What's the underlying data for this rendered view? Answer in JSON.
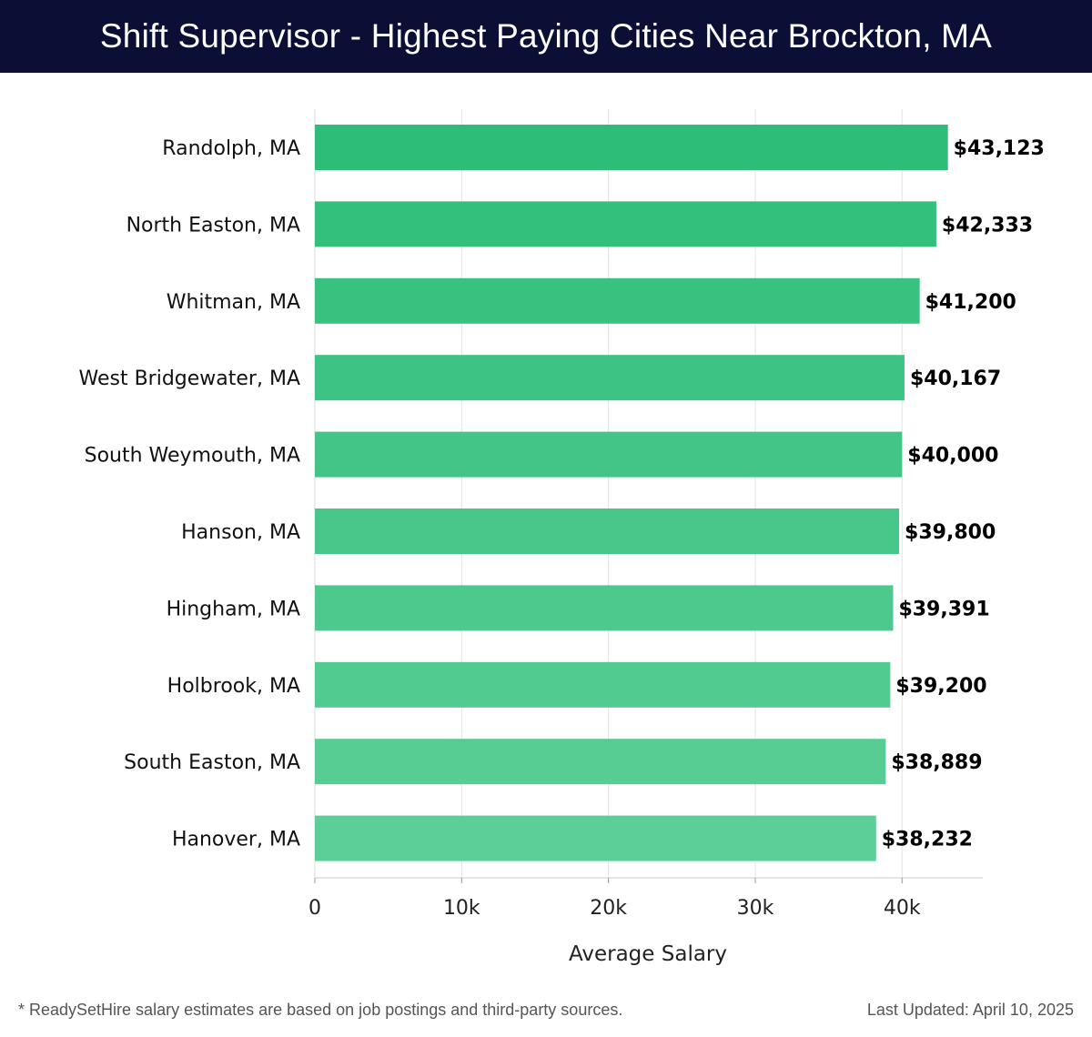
{
  "header": {
    "title": "Shift Supervisor - Highest Paying Cities Near Brockton, MA"
  },
  "chart_data": {
    "type": "bar",
    "orientation": "horizontal",
    "categories": [
      "Randolph, MA",
      "North Easton, MA",
      "Whitman, MA",
      "West Bridgewater, MA",
      "South Weymouth, MA",
      "Hanson, MA",
      "Hingham, MA",
      "Holbrook, MA",
      "South Easton, MA",
      "Hanover, MA"
    ],
    "values": [
      43123,
      42333,
      41200,
      40167,
      40000,
      39800,
      39391,
      39200,
      38889,
      38232
    ],
    "data_labels": [
      "$43,123",
      "$42,333",
      "$41,200",
      "$40,167",
      "$40,000",
      "$39,800",
      "$39,391",
      "$39,200",
      "$38,889",
      "$38,232"
    ],
    "xlabel": "Average Salary",
    "ylabel": "",
    "xlim": [
      0,
      45500
    ],
    "ticks": [
      0,
      10000,
      20000,
      30000,
      40000
    ],
    "tick_labels": [
      "0",
      "10k",
      "20k",
      "30k",
      "40k"
    ],
    "grid": true,
    "bar_color_start": "#2ebd78",
    "bar_color_end": "#5ccf98"
  },
  "footer": {
    "note": "* ReadySetHire salary estimates are based on job postings and third-party sources.",
    "updated": "Last Updated: April 10, 2025"
  }
}
